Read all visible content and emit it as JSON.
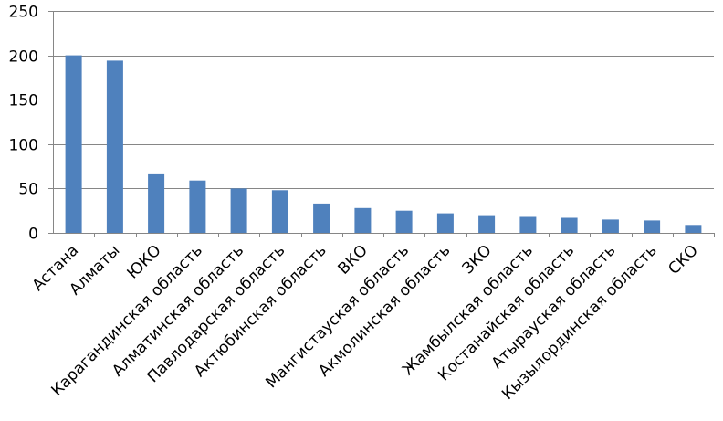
{
  "chart_data": {
    "type": "bar",
    "title": "",
    "xlabel": "",
    "ylabel": "",
    "categories": [
      "Астана",
      "Алматы",
      "ЮКО",
      "Карагандинская область",
      "Алматинская область",
      "Павлодарская область",
      "Актюбинская область",
      "ВКО",
      "Мангистауская область",
      "Акмолинская область",
      "ЗКО",
      "Жамбылская область",
      "Костанайская область",
      "Атырауская область",
      "Кызылординская область",
      "СКО"
    ],
    "values": [
      200,
      194,
      67,
      59,
      50,
      48,
      33,
      28,
      25,
      22,
      20,
      18,
      17,
      15,
      14,
      9
    ],
    "ylim": [
      0,
      250
    ],
    "yticks": [
      "0",
      "50",
      "100",
      "150",
      "200",
      "250"
    ],
    "grid": true,
    "legend": "none",
    "colors": {
      "bar": "#4f81bd",
      "grid": "#868686"
    }
  }
}
